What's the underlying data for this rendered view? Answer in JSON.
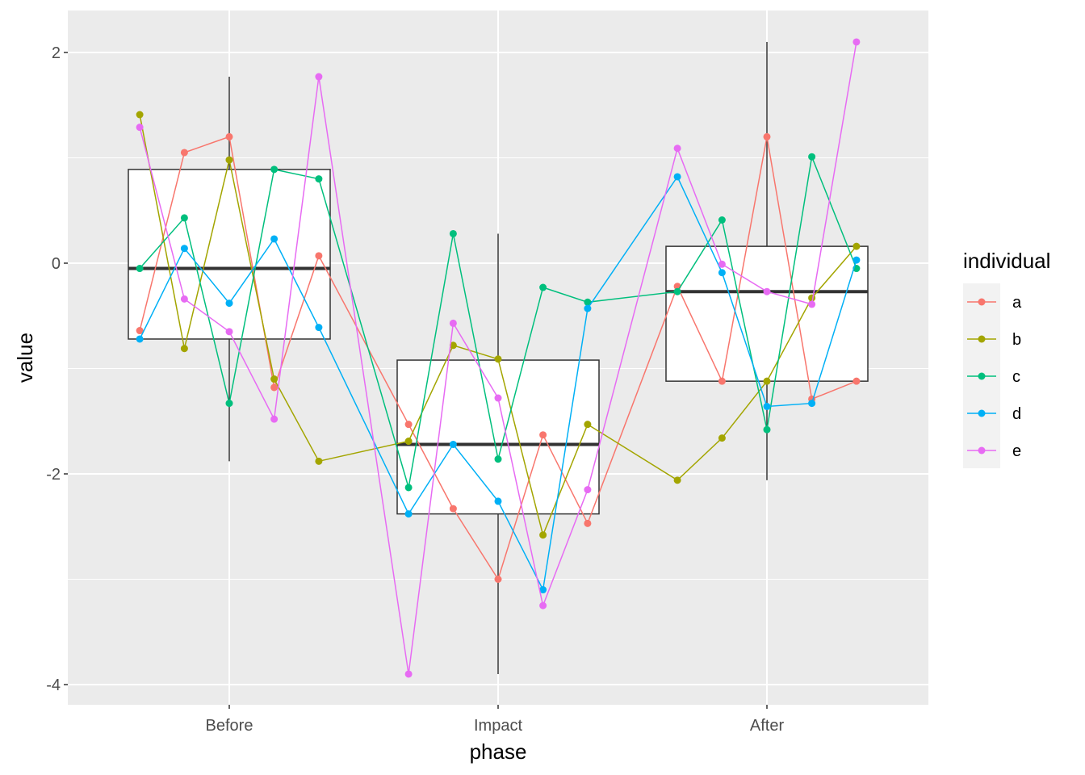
{
  "chart_data": {
    "type": "boxplot",
    "xlabel": "phase",
    "ylabel": "value",
    "categories": [
      "Before",
      "Impact",
      "After"
    ],
    "ylim": [
      -4.2,
      2.4
    ],
    "yticks": [
      -4,
      -2,
      0,
      2
    ],
    "ytick_labels": [
      "-4",
      "-2",
      "0",
      "2"
    ],
    "grid": true,
    "legend": {
      "title": "individual",
      "position": "right"
    },
    "boxes": [
      {
        "category": "Before",
        "lower_whisker": -1.88,
        "q1": -0.72,
        "median": -0.05,
        "q3": 0.89,
        "upper_whisker": 1.77
      },
      {
        "category": "Impact",
        "lower_whisker": -3.9,
        "q1": -2.38,
        "median": -1.72,
        "q3": -0.92,
        "upper_whisker": 0.28
      },
      {
        "category": "After",
        "lower_whisker": -2.06,
        "q1": -1.12,
        "median": -0.27,
        "q3": 0.16,
        "upper_whisker": 2.1
      }
    ],
    "series": [
      {
        "name": "a",
        "color": "#F8766D",
        "points": [
          [
            -0.333,
            -0.64
          ],
          [
            -0.167,
            1.05
          ],
          [
            0,
            1.2
          ],
          [
            0.167,
            -1.18
          ],
          [
            0.333,
            0.07
          ],
          [
            0.667,
            -1.53
          ],
          [
            0.833,
            -2.33
          ],
          [
            1,
            -3.0
          ],
          [
            1.167,
            -1.63
          ],
          [
            1.333,
            -2.47
          ],
          [
            1.667,
            -0.22
          ],
          [
            1.833,
            -1.12
          ],
          [
            2,
            1.2
          ],
          [
            2.167,
            -1.29
          ],
          [
            2.333,
            -1.12
          ]
        ]
      },
      {
        "name": "b",
        "color": "#A3A500",
        "points": [
          [
            -0.333,
            1.41
          ],
          [
            -0.167,
            -0.81
          ],
          [
            0,
            0.98
          ],
          [
            0.167,
            -1.1
          ],
          [
            0.333,
            -1.88
          ],
          [
            0.667,
            -1.69
          ],
          [
            0.833,
            -0.78
          ],
          [
            1,
            -0.91
          ],
          [
            1.167,
            -2.58
          ],
          [
            1.333,
            -1.53
          ],
          [
            1.667,
            -2.06
          ],
          [
            1.833,
            -1.66
          ],
          [
            2,
            -1.12
          ],
          [
            2.167,
            -0.33
          ],
          [
            2.333,
            0.16
          ]
        ]
      },
      {
        "name": "c",
        "color": "#00BF7D",
        "points": [
          [
            -0.333,
            -0.05
          ],
          [
            -0.167,
            0.43
          ],
          [
            0,
            -1.33
          ],
          [
            0.167,
            0.89
          ],
          [
            0.333,
            0.8
          ],
          [
            0.667,
            -2.13
          ],
          [
            0.833,
            0.28
          ],
          [
            1,
            -1.86
          ],
          [
            1.167,
            -0.23
          ],
          [
            1.333,
            -0.37
          ],
          [
            1.667,
            -0.27
          ],
          [
            1.833,
            0.41
          ],
          [
            2,
            -1.58
          ],
          [
            2.167,
            1.01
          ],
          [
            2.333,
            -0.05
          ]
        ]
      },
      {
        "name": "d",
        "color": "#00B0F6",
        "points": [
          [
            -0.333,
            -0.72
          ],
          [
            -0.167,
            0.14
          ],
          [
            0,
            -0.38
          ],
          [
            0.167,
            0.23
          ],
          [
            0.333,
            -0.61
          ],
          [
            0.667,
            -2.38
          ],
          [
            0.833,
            -1.72
          ],
          [
            1,
            -2.26
          ],
          [
            1.167,
            -3.1
          ],
          [
            1.333,
            -0.43
          ],
          [
            1.667,
            0.82
          ],
          [
            1.833,
            -0.09
          ],
          [
            2,
            -1.36
          ],
          [
            2.167,
            -1.33
          ],
          [
            2.333,
            0.03
          ]
        ]
      },
      {
        "name": "e",
        "color": "#E76BF3",
        "points": [
          [
            -0.333,
            1.29
          ],
          [
            -0.167,
            -0.34
          ],
          [
            0,
            -0.65
          ],
          [
            0.167,
            -1.48
          ],
          [
            0.333,
            1.77
          ],
          [
            0.667,
            -3.9
          ],
          [
            0.833,
            -0.57
          ],
          [
            1,
            -1.28
          ],
          [
            1.167,
            -3.25
          ],
          [
            1.333,
            -2.15
          ],
          [
            1.667,
            1.09
          ],
          [
            1.833,
            -0.01
          ],
          [
            2,
            -0.27
          ],
          [
            2.167,
            -0.39
          ],
          [
            2.333,
            2.1
          ]
        ]
      }
    ]
  }
}
